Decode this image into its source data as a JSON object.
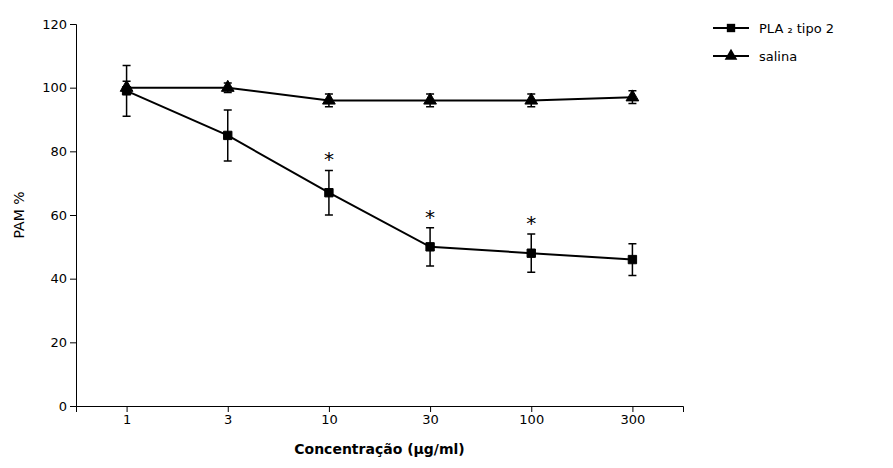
{
  "chart_data": {
    "type": "line",
    "categories": [
      "1",
      "3",
      "10",
      "30",
      "100",
      "300"
    ],
    "series": [
      {
        "name": "PLA ₂ tipo 2",
        "color": "black",
        "marker": "square",
        "values": [
          99,
          85,
          67,
          50,
          48,
          46
        ],
        "errors": [
          8,
          8,
          7,
          6,
          6,
          5
        ]
      },
      {
        "name": "salina",
        "color": "black",
        "marker": "triangle",
        "values": [
          100,
          100,
          96,
          96,
          96,
          97
        ],
        "errors": [
          2,
          1.5,
          2,
          2,
          2,
          2
        ]
      }
    ],
    "xlabel": "Concentração (μg/ml)",
    "ylabel": "PAM %",
    "ylim": [
      0,
      120
    ],
    "yticks": [
      0,
      20,
      40,
      60,
      80,
      100,
      120
    ],
    "legend": "right",
    "annotations": [
      {
        "text": "*",
        "category": "10"
      },
      {
        "text": "*",
        "category": "30"
      },
      {
        "text": "*",
        "category": "100"
      }
    ]
  }
}
